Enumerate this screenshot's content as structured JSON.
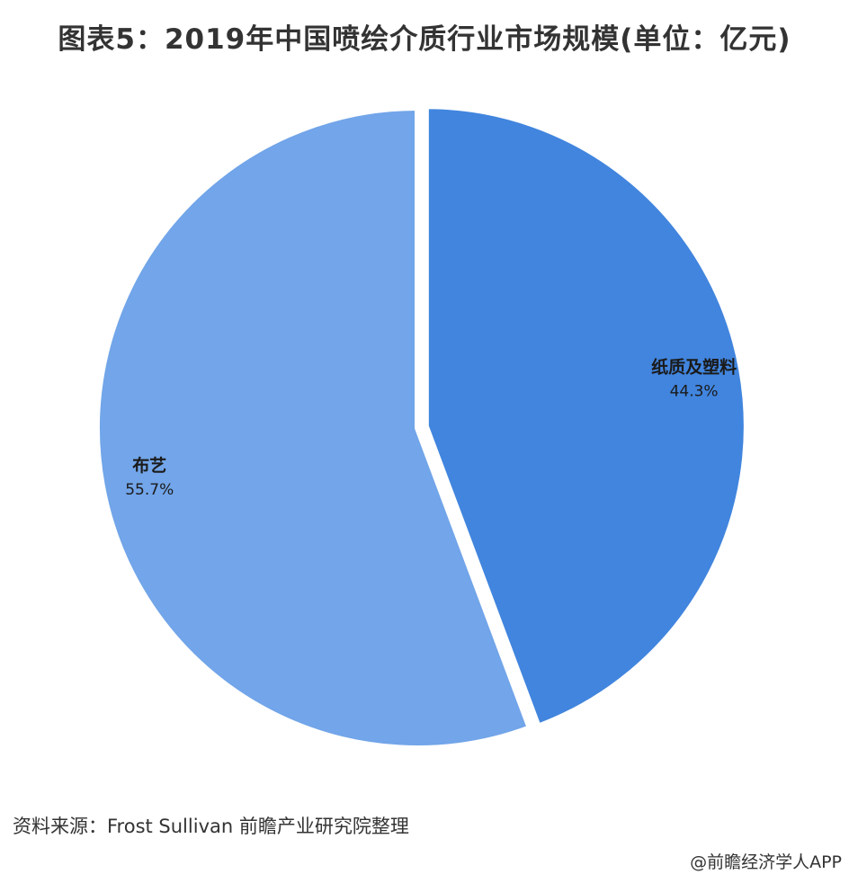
{
  "title": "图表5：2019年中国喷绘介质行业市场规模(单位：亿元)",
  "source": "资料来源：Frost Sullivan 前瞻产业研究院整理",
  "credit": "@前瞻经济学人APP",
  "chart_data": {
    "type": "pie",
    "title": "图表5：2019年中国喷绘介质行业市场规模(单位：亿元)",
    "slices": [
      {
        "label": "纸质及塑料",
        "value": 44.3,
        "value_label": "44.3%",
        "color": "#4185de",
        "exploded": true
      },
      {
        "label": "布艺",
        "value": 55.7,
        "value_label": "55.7%",
        "color": "#72a5e9",
        "exploded": false
      }
    ],
    "start_angle": "12 o'clock",
    "direction": "clockwise",
    "legend": "none"
  }
}
